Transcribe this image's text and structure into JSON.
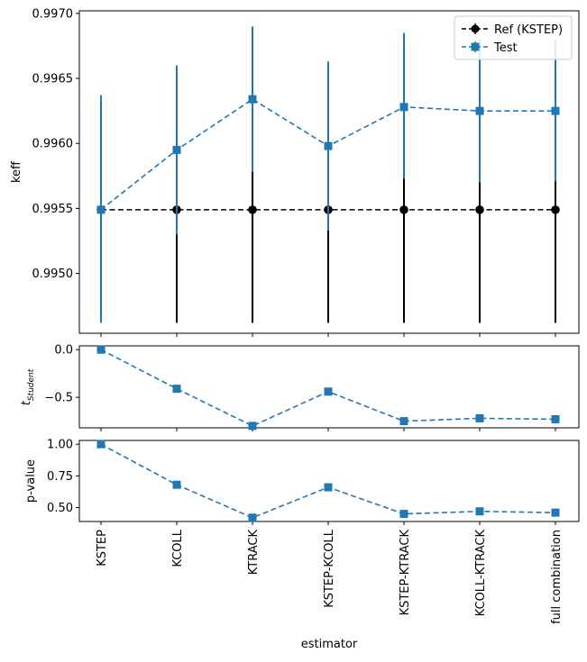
{
  "chart_data": {
    "type": "line",
    "categories": [
      "KSTEP",
      "KCOLL",
      "KTRACK",
      "KSTEP-KCOLL",
      "KSTEP-KTRACK",
      "KCOLL-KTRACK",
      "full combination"
    ],
    "xlabel": "estimator",
    "legend_position": "top-right",
    "panels": [
      {
        "ylabel": "keff",
        "ylim": [
          0.99454,
          0.99702
        ],
        "yticks": [
          0.995,
          0.9955,
          0.996,
          0.9965,
          0.997
        ],
        "ytick_labels": [
          "0.9950",
          "0.9955",
          "0.9960",
          "0.9965",
          "0.9970"
        ],
        "series": [
          {
            "name": "Ref (KSTEP)",
            "color": "#000000",
            "marker": "circle",
            "values": [
              0.99549,
              0.99549,
              0.99549,
              0.99549,
              0.99549,
              0.99549,
              0.99549
            ],
            "err_low": [
              0.99462,
              0.99462,
              0.99462,
              0.99462,
              0.99462,
              0.99462,
              0.99462
            ],
            "err_high": [
              0.99637,
              0.9953,
              0.99578,
              0.99533,
              0.99573,
              0.9957,
              0.99571
            ]
          },
          {
            "name": "Test",
            "color": "#1f77b4",
            "marker": "square",
            "values": [
              0.99549,
              0.99595,
              0.99634,
              0.99598,
              0.99628,
              0.99625,
              0.99625
            ],
            "err_low": [
              0.99462,
              0.9953,
              0.99578,
              0.99533,
              0.99573,
              0.9957,
              0.99571
            ],
            "err_high": [
              0.99637,
              0.9966,
              0.9969,
              0.99663,
              0.99685,
              0.9968,
              0.9968
            ]
          }
        ]
      },
      {
        "ylabel": "tStudent",
        "ylabel_main": "t",
        "ylabel_sub": "Student",
        "ylim": [
          -0.82,
          0.04
        ],
        "yticks": [
          0.0,
          -0.5
        ],
        "ytick_labels": [
          "0.0",
          "−0.5"
        ],
        "series": [
          {
            "color": "#1f77b4",
            "marker": "square",
            "values": [
              0.0,
              -0.41,
              -0.8,
              -0.44,
              -0.75,
              -0.72,
              -0.73
            ]
          }
        ]
      },
      {
        "ylabel": "p-value",
        "ylim": [
          0.39,
          1.03
        ],
        "yticks": [
          0.5,
          0.75,
          1.0
        ],
        "ytick_labels": [
          "0.50",
          "0.75",
          "1.00"
        ],
        "series": [
          {
            "color": "#1f77b4",
            "marker": "square",
            "values": [
              1.0,
              0.68,
              0.42,
              0.66,
              0.45,
              0.47,
              0.46
            ]
          }
        ]
      }
    ]
  }
}
